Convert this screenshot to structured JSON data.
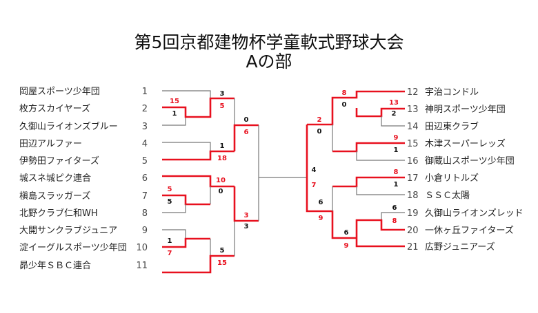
{
  "title": "第5回京都建物杯学童軟式野球大会",
  "subtitle": "Aの部",
  "colors": {
    "winner": "#e8101e",
    "line": "#777777"
  },
  "left_teams": [
    {
      "seed": "1",
      "name": "岡屋スポーツ少年団"
    },
    {
      "seed": "2",
      "name": "枚方スカイヤーズ"
    },
    {
      "seed": "3",
      "name": "久御山ライオンズブルー"
    },
    {
      "seed": "4",
      "name": "田辺アルファー"
    },
    {
      "seed": "5",
      "name": "伊勢田ファイターズ"
    },
    {
      "seed": "6",
      "name": "城スネ城ピク連合"
    },
    {
      "seed": "7",
      "name": "槇島スラッガーズ"
    },
    {
      "seed": "8",
      "name": "北野クラブ仁和WH"
    },
    {
      "seed": "9",
      "name": "大開サンクラブジュニア"
    },
    {
      "seed": "10",
      "name": "淀イーグルスポーツ少年団"
    },
    {
      "seed": "11",
      "name": "昴少年ＳＢＣ連合"
    }
  ],
  "right_teams": [
    {
      "seed": "12",
      "name": "宇治コンドル"
    },
    {
      "seed": "13",
      "name": "神明スポーツ少年団"
    },
    {
      "seed": "14",
      "name": "田辺東クラブ"
    },
    {
      "seed": "15",
      "name": "木津スーパーレッズ"
    },
    {
      "seed": "16",
      "name": "御蔵山スポーツ少年団"
    },
    {
      "seed": "17",
      "name": "小倉リトルズ"
    },
    {
      "seed": "18",
      "name": "ＳＳＣ太陽"
    },
    {
      "seed": "19",
      "name": "久御山ライオンズレッド"
    },
    {
      "seed": "20",
      "name": "一休ヶ丘ファイターズ"
    },
    {
      "seed": "21",
      "name": "広野ジュニアーズ"
    }
  ],
  "scores": {
    "m2v3": [
      "15",
      "1"
    ],
    "m1v23": [
      "3",
      "5"
    ],
    "m4v5": [
      "1",
      "18"
    ],
    "mL_semi1": [
      "0",
      "6"
    ],
    "m7v8": [
      "5",
      "5"
    ],
    "m6v78": [
      "10",
      "0"
    ],
    "m9v10": [
      "1",
      "7"
    ],
    "m910v11": [
      "5",
      "15"
    ],
    "mL_semi2": [
      "3",
      "3"
    ],
    "m13v14": [
      "13",
      "2"
    ],
    "m12v1314": [
      "8",
      "0"
    ],
    "m15v16": [
      "9",
      "1"
    ],
    "mR_semi1": [
      "2",
      "0"
    ],
    "m17v18": [
      "8",
      "1"
    ],
    "m19v20": [
      "6",
      "8"
    ],
    "m1920v21": [
      "6",
      "9"
    ],
    "mR_semi2": [
      "6",
      "9"
    ],
    "final": [
      "4",
      "7"
    ]
  }
}
